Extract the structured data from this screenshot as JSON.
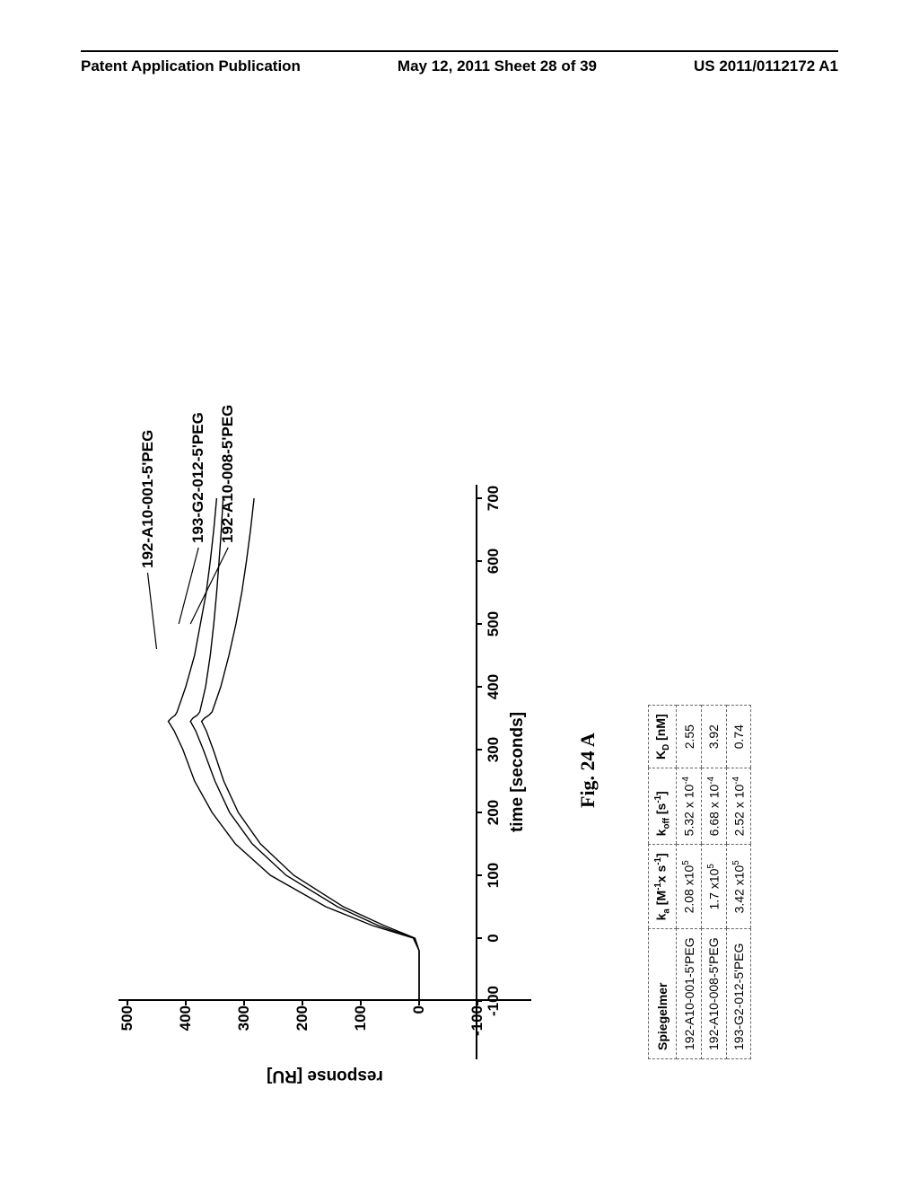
{
  "header": {
    "left": "Patent Application Publication",
    "center": "May 12, 2011  Sheet 28 of 39",
    "right": "US 2011/0112172 A1"
  },
  "figure_caption": "Fig. 24 A",
  "chart": {
    "type": "line",
    "x_label": "time [seconds]",
    "y_label": "response [RU]",
    "background_color": "#ffffff",
    "line_color": "#000000",
    "line_width": 1.4,
    "x_ticks": [
      -100,
      0,
      100,
      200,
      300,
      400,
      500,
      600,
      700
    ],
    "y_ticks": [
      -100,
      0,
      100,
      200,
      300,
      400,
      500
    ],
    "xlim": [
      -100,
      700
    ],
    "ylim": [
      -100,
      500
    ],
    "tick_fontsize": 17,
    "label_fontsize": 19,
    "series": [
      {
        "name": "192-A10-001-5'PEG",
        "label_pos": {
          "x": 460,
          "y": 450
        },
        "points": [
          [
            -100,
            0
          ],
          [
            -20,
            0
          ],
          [
            0,
            10
          ],
          [
            20,
            80
          ],
          [
            50,
            160
          ],
          [
            100,
            255
          ],
          [
            150,
            315
          ],
          [
            200,
            355
          ],
          [
            250,
            385
          ],
          [
            300,
            405
          ],
          [
            330,
            420
          ],
          [
            345,
            430
          ],
          [
            350,
            425
          ],
          [
            355,
            418
          ],
          [
            360,
            415
          ],
          [
            400,
            400
          ],
          [
            450,
            385
          ],
          [
            500,
            375
          ],
          [
            550,
            365
          ],
          [
            600,
            358
          ],
          [
            650,
            352
          ],
          [
            700,
            347
          ]
        ]
      },
      {
        "name": "193-G2-012-5'PEG",
        "label_pos": {
          "x": 500,
          "y": 412
        },
        "points": [
          [
            -100,
            0
          ],
          [
            -20,
            0
          ],
          [
            0,
            8
          ],
          [
            20,
            70
          ],
          [
            50,
            140
          ],
          [
            100,
            228
          ],
          [
            150,
            286
          ],
          [
            200,
            325
          ],
          [
            250,
            350
          ],
          [
            300,
            370
          ],
          [
            330,
            383
          ],
          [
            345,
            392
          ],
          [
            350,
            388
          ],
          [
            355,
            380
          ],
          [
            360,
            376
          ],
          [
            400,
            366
          ],
          [
            450,
            358
          ],
          [
            500,
            352
          ],
          [
            550,
            347
          ],
          [
            600,
            343
          ],
          [
            650,
            339
          ],
          [
            700,
            336
          ]
        ]
      },
      {
        "name": "192-A10-008-5'PEG",
        "label_pos": {
          "x": 500,
          "y": 392
        },
        "points": [
          [
            -100,
            0
          ],
          [
            -20,
            0
          ],
          [
            0,
            7
          ],
          [
            20,
            60
          ],
          [
            50,
            130
          ],
          [
            100,
            215
          ],
          [
            150,
            272
          ],
          [
            200,
            310
          ],
          [
            250,
            335
          ],
          [
            300,
            353
          ],
          [
            330,
            365
          ],
          [
            345,
            373
          ],
          [
            350,
            368
          ],
          [
            355,
            360
          ],
          [
            360,
            355
          ],
          [
            400,
            340
          ],
          [
            450,
            326
          ],
          [
            500,
            314
          ],
          [
            550,
            304
          ],
          [
            600,
            296
          ],
          [
            650,
            289
          ],
          [
            700,
            283
          ]
        ]
      }
    ]
  },
  "series_labels": {
    "s0": "192-A10-001-5'PEG",
    "s1": "193-G2-012-5'PEG",
    "s2": "192-A10-008-5'PEG"
  },
  "table": {
    "columns": [
      "Spiegelmer",
      "kₐ [M⁻¹x s⁻¹]",
      "kₒff [s⁻¹]",
      "Kᴅ [nM]"
    ],
    "header_html": {
      "c0": "Spiegelmer",
      "c1": "k<sub>a</sub> [M<sup>-1</sup>x s<sup>-1</sup>]",
      "c2": "k<sub>off</sub> [s<sup>-1</sup>]",
      "c3": "K<sub>D</sub> [nM]"
    },
    "rows": [
      {
        "spiegelmer": "192-A10-001-5'PEG",
        "ka": "2.08 x10<sup>5</sup>",
        "koff": "5.32 x 10<sup>-4</sup>",
        "kd": "2.55"
      },
      {
        "spiegelmer": "192-A10-008-5'PEG",
        "ka": "1.7 x10<sup>5</sup>",
        "koff": "6.68 x 10<sup>-4</sup>",
        "kd": "3.92"
      },
      {
        "spiegelmer": "193-G2-012-5'PEG",
        "ka": "3.42 x10<sup>5</sup>",
        "koff": "2.52 x 10<sup>-4</sup>",
        "kd": "0.74"
      }
    ]
  }
}
